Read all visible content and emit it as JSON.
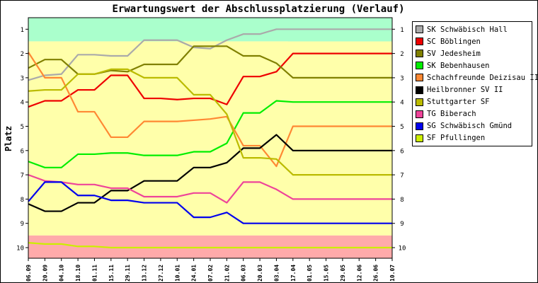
{
  "chart_data": {
    "type": "line",
    "title": "Erwartungswert der Abschlussplatzierung (Verlauf)",
    "ylabel": "Platz",
    "xlabel": "",
    "ylim": [
      1,
      10
    ],
    "y_inverted": true,
    "yticks": [
      "1",
      "2",
      "3",
      "4",
      "5",
      "6",
      "7",
      "8",
      "9",
      "10"
    ],
    "categories": [
      "06.09",
      "20.09",
      "04.10",
      "18.10",
      "01.11",
      "15.11",
      "29.11",
      "13.12",
      "27.12",
      "10.01",
      "24.01",
      "07.02",
      "21.02",
      "06.03",
      "20.03",
      "03.04",
      "17.04",
      "01.05",
      "15.05",
      "29.05",
      "12.06",
      "26.06",
      "10.07"
    ],
    "zones": [
      {
        "name": "top",
        "color": "#aaffcc",
        "from": 0.5,
        "to": 1.5
      },
      {
        "name": "middle",
        "color": "#ffffaa",
        "from": 1.5,
        "to": 9.5
      },
      {
        "name": "bottom",
        "color": "#ffaaaa",
        "from": 9.5,
        "to": 10.5
      }
    ],
    "series": [
      {
        "name": "SK Schwäbisch Hall",
        "color": "#aaaaaa",
        "values": [
          3.1,
          2.9,
          2.85,
          2.05,
          2.05,
          2.1,
          2.1,
          1.45,
          1.45,
          1.45,
          1.75,
          1.8,
          1.45,
          1.2,
          1.2,
          1.0,
          1.0,
          1.0,
          1.0,
          1.0,
          1.0,
          1.0,
          1.0
        ]
      },
      {
        "name": "SC Böblingen",
        "color": "#ee0000",
        "values": [
          4.2,
          3.95,
          3.95,
          3.5,
          3.5,
          2.9,
          2.9,
          3.85,
          3.85,
          3.9,
          3.85,
          3.85,
          4.1,
          2.95,
          2.95,
          2.75,
          2.0,
          2.0,
          2.0,
          2.0,
          2.0,
          2.0,
          2.0
        ]
      },
      {
        "name": "SV Jedesheim",
        "color": "#808000",
        "values": [
          2.6,
          2.25,
          2.25,
          2.85,
          2.85,
          2.7,
          2.75,
          2.45,
          2.45,
          2.45,
          1.7,
          1.7,
          1.7,
          2.1,
          2.1,
          2.4,
          3.0,
          3.0,
          3.0,
          3.0,
          3.0,
          3.0,
          3.0
        ]
      },
      {
        "name": "SK Bebenhausen",
        "color": "#00ee00",
        "values": [
          6.45,
          6.7,
          6.7,
          6.15,
          6.15,
          6.1,
          6.1,
          6.2,
          6.2,
          6.2,
          6.05,
          6.05,
          5.7,
          4.45,
          4.45,
          3.95,
          4.0,
          4.0,
          4.0,
          4.0,
          4.0,
          4.0,
          4.0
        ]
      },
      {
        "name": "Schachfreunde Deizisau II",
        "color": "#ff8833",
        "values": [
          1.95,
          3.0,
          3.0,
          4.4,
          4.4,
          5.45,
          5.45,
          4.8,
          4.8,
          4.8,
          4.75,
          4.7,
          4.6,
          5.8,
          5.8,
          6.65,
          5.0,
          5.0,
          5.0,
          5.0,
          5.0,
          5.0,
          5.0
        ]
      },
      {
        "name": "Heilbronner SV II",
        "color": "#000000",
        "values": [
          8.2,
          8.5,
          8.5,
          8.15,
          8.15,
          7.65,
          7.65,
          7.25,
          7.25,
          7.25,
          6.7,
          6.7,
          6.5,
          5.9,
          5.9,
          5.35,
          6.0,
          6.0,
          6.0,
          6.0,
          6.0,
          6.0,
          6.0
        ]
      },
      {
        "name": "Stuttgarter SF",
        "color": "#bbbb00",
        "values": [
          3.55,
          3.5,
          3.5,
          2.85,
          2.85,
          2.65,
          2.65,
          3.0,
          3.0,
          3.0,
          3.7,
          3.7,
          4.5,
          6.3,
          6.3,
          6.35,
          7.0,
          7.0,
          7.0,
          7.0,
          7.0,
          7.0,
          7.0
        ]
      },
      {
        "name": "TG Biberach",
        "color": "#ee4499",
        "values": [
          7.0,
          7.25,
          7.3,
          7.4,
          7.4,
          7.55,
          7.55,
          7.9,
          7.9,
          7.9,
          7.75,
          7.75,
          8.15,
          7.3,
          7.3,
          7.6,
          8.0,
          8.0,
          8.0,
          8.0,
          8.0,
          8.0,
          8.0
        ]
      },
      {
        "name": "SG Schwäbisch Gmünd",
        "color": "#0000ee",
        "values": [
          8.1,
          7.3,
          7.3,
          7.85,
          7.85,
          8.05,
          8.05,
          8.15,
          8.15,
          8.15,
          8.75,
          8.75,
          8.55,
          9.0,
          9.0,
          9.0,
          9.0,
          9.0,
          9.0,
          9.0,
          9.0,
          9.0,
          9.0
        ]
      },
      {
        "name": "SF Pfullingen",
        "color": "#ccee00",
        "values": [
          9.8,
          9.85,
          9.85,
          9.95,
          9.95,
          10.0,
          10.0,
          10.0,
          10.0,
          10.0,
          10.0,
          10.0,
          10.0,
          10.0,
          10.0,
          10.0,
          10.0,
          10.0,
          10.0,
          10.0,
          10.0,
          10.0,
          10.0
        ]
      }
    ]
  }
}
